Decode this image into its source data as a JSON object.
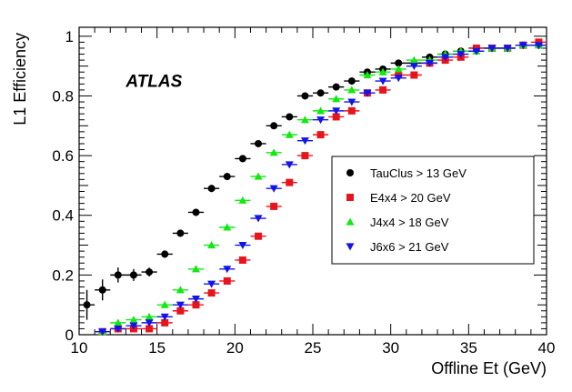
{
  "chart_data": {
    "type": "scatter",
    "title": "",
    "xlabel": "Offline Et (GeV)",
    "ylabel": "L1 Efficiency",
    "xlim": [
      10,
      40
    ],
    "ylim": [
      0,
      1.03
    ],
    "xticks": [
      10,
      15,
      20,
      25,
      30,
      35,
      40
    ],
    "xtick_labels": [
      "10",
      "15",
      "20",
      "25",
      "30",
      "35",
      "40"
    ],
    "yticks": [
      0,
      0.2,
      0.4,
      0.6,
      0.8,
      1
    ],
    "ytick_labels": [
      "0",
      "0.2",
      "0.4",
      "0.6",
      "0.8",
      "1"
    ],
    "annotation": "ATLAS",
    "grid": false,
    "legend_position": "center-right",
    "series": [
      {
        "name": "TauClus > 13 GeV",
        "marker": "circle",
        "color": "#000000",
        "x": [
          10.5,
          11.5,
          12.5,
          13.5,
          14.5,
          15.5,
          16.5,
          17.5,
          18.5,
          19.5,
          20.5,
          21.5,
          22.5,
          23.5,
          24.5,
          25.5,
          26.5,
          27.5,
          28.5,
          29.5,
          30.5,
          31.5,
          32.5,
          33.5,
          34.5,
          35.5,
          36.5,
          37.5,
          38.5,
          39.5
        ],
        "y": [
          0.1,
          0.15,
          0.2,
          0.2,
          0.21,
          0.27,
          0.34,
          0.41,
          0.49,
          0.53,
          0.59,
          0.64,
          0.7,
          0.73,
          0.8,
          0.81,
          0.83,
          0.85,
          0.88,
          0.89,
          0.91,
          0.91,
          0.93,
          0.94,
          0.95,
          0.96,
          0.96,
          0.96,
          0.97,
          0.97
        ],
        "yerr": [
          0.05,
          0.035,
          0.025,
          0.02,
          0.015,
          0.012,
          0.012,
          0.012,
          0.012,
          0.012,
          0.012,
          0.01,
          0.01,
          0.01,
          0.01,
          0.01,
          0.01,
          0.01,
          0.01,
          0.01,
          0.01,
          0.01,
          0.01,
          0.01,
          0.01,
          0.01,
          0.01,
          0.01,
          0.01,
          0.01
        ]
      },
      {
        "name": "E4x4 > 20 GeV",
        "marker": "square",
        "color": "#e8141c",
        "x": [
          11.5,
          12.5,
          13.5,
          14.5,
          15.5,
          16.5,
          17.5,
          18.5,
          19.5,
          20.5,
          21.5,
          22.5,
          23.5,
          24.5,
          25.5,
          26.5,
          27.5,
          28.5,
          29.5,
          30.5,
          31.5,
          32.5,
          33.5,
          34.5,
          35.5,
          36.5,
          37.5,
          38.5,
          39.5
        ],
        "y": [
          0.01,
          0.02,
          0.02,
          0.02,
          0.04,
          0.08,
          0.1,
          0.14,
          0.18,
          0.25,
          0.33,
          0.43,
          0.51,
          0.6,
          0.67,
          0.73,
          0.75,
          0.81,
          0.82,
          0.87,
          0.87,
          0.91,
          0.92,
          0.93,
          0.96,
          0.96,
          0.96,
          0.97,
          0.98
        ],
        "yerr": [
          0,
          0,
          0,
          0,
          0,
          0,
          0,
          0,
          0,
          0,
          0,
          0,
          0,
          0,
          0,
          0,
          0,
          0,
          0,
          0,
          0,
          0,
          0,
          0,
          0,
          0,
          0,
          0,
          0
        ]
      },
      {
        "name": "J4x4 > 18 GeV",
        "marker": "triangle-up",
        "color": "#12e812",
        "x": [
          11.5,
          12.5,
          13.5,
          14.5,
          15.5,
          16.5,
          17.5,
          18.5,
          19.5,
          20.5,
          21.5,
          22.5,
          23.5,
          24.5,
          25.5,
          26.5,
          27.5,
          28.5,
          29.5,
          30.5,
          31.5,
          32.5,
          33.5,
          34.5,
          35.5,
          36.5,
          37.5,
          38.5,
          39.5
        ],
        "y": [
          0.01,
          0.04,
          0.05,
          0.06,
          0.1,
          0.15,
          0.22,
          0.3,
          0.36,
          0.45,
          0.53,
          0.61,
          0.67,
          0.72,
          0.75,
          0.79,
          0.82,
          0.87,
          0.88,
          0.89,
          0.92,
          0.92,
          0.94,
          0.95,
          0.95,
          0.96,
          0.96,
          0.97,
          0.97
        ],
        "yerr": [
          0,
          0,
          0,
          0,
          0,
          0,
          0,
          0,
          0,
          0,
          0,
          0,
          0,
          0,
          0,
          0,
          0,
          0,
          0,
          0,
          0,
          0,
          0,
          0,
          0,
          0,
          0,
          0,
          0
        ]
      },
      {
        "name": "J6x6 > 21 GeV",
        "marker": "triangle-down",
        "color": "#1414e8",
        "x": [
          11.5,
          12.5,
          13.5,
          14.5,
          15.5,
          16.5,
          17.5,
          18.5,
          19.5,
          20.5,
          21.5,
          22.5,
          23.5,
          24.5,
          25.5,
          26.5,
          27.5,
          28.5,
          29.5,
          30.5,
          31.5,
          32.5,
          33.5,
          34.5,
          35.5,
          36.5,
          37.5,
          38.5,
          39.5
        ],
        "y": [
          0.01,
          0.02,
          0.03,
          0.04,
          0.06,
          0.1,
          0.12,
          0.17,
          0.22,
          0.3,
          0.39,
          0.49,
          0.57,
          0.65,
          0.72,
          0.75,
          0.78,
          0.81,
          0.85,
          0.86,
          0.9,
          0.91,
          0.93,
          0.94,
          0.95,
          0.96,
          0.96,
          0.97,
          0.97
        ],
        "yerr": [
          0,
          0,
          0,
          0,
          0,
          0,
          0,
          0,
          0,
          0,
          0,
          0,
          0,
          0,
          0,
          0,
          0,
          0,
          0,
          0,
          0,
          0,
          0,
          0,
          0,
          0,
          0,
          0,
          0
        ]
      }
    ]
  }
}
